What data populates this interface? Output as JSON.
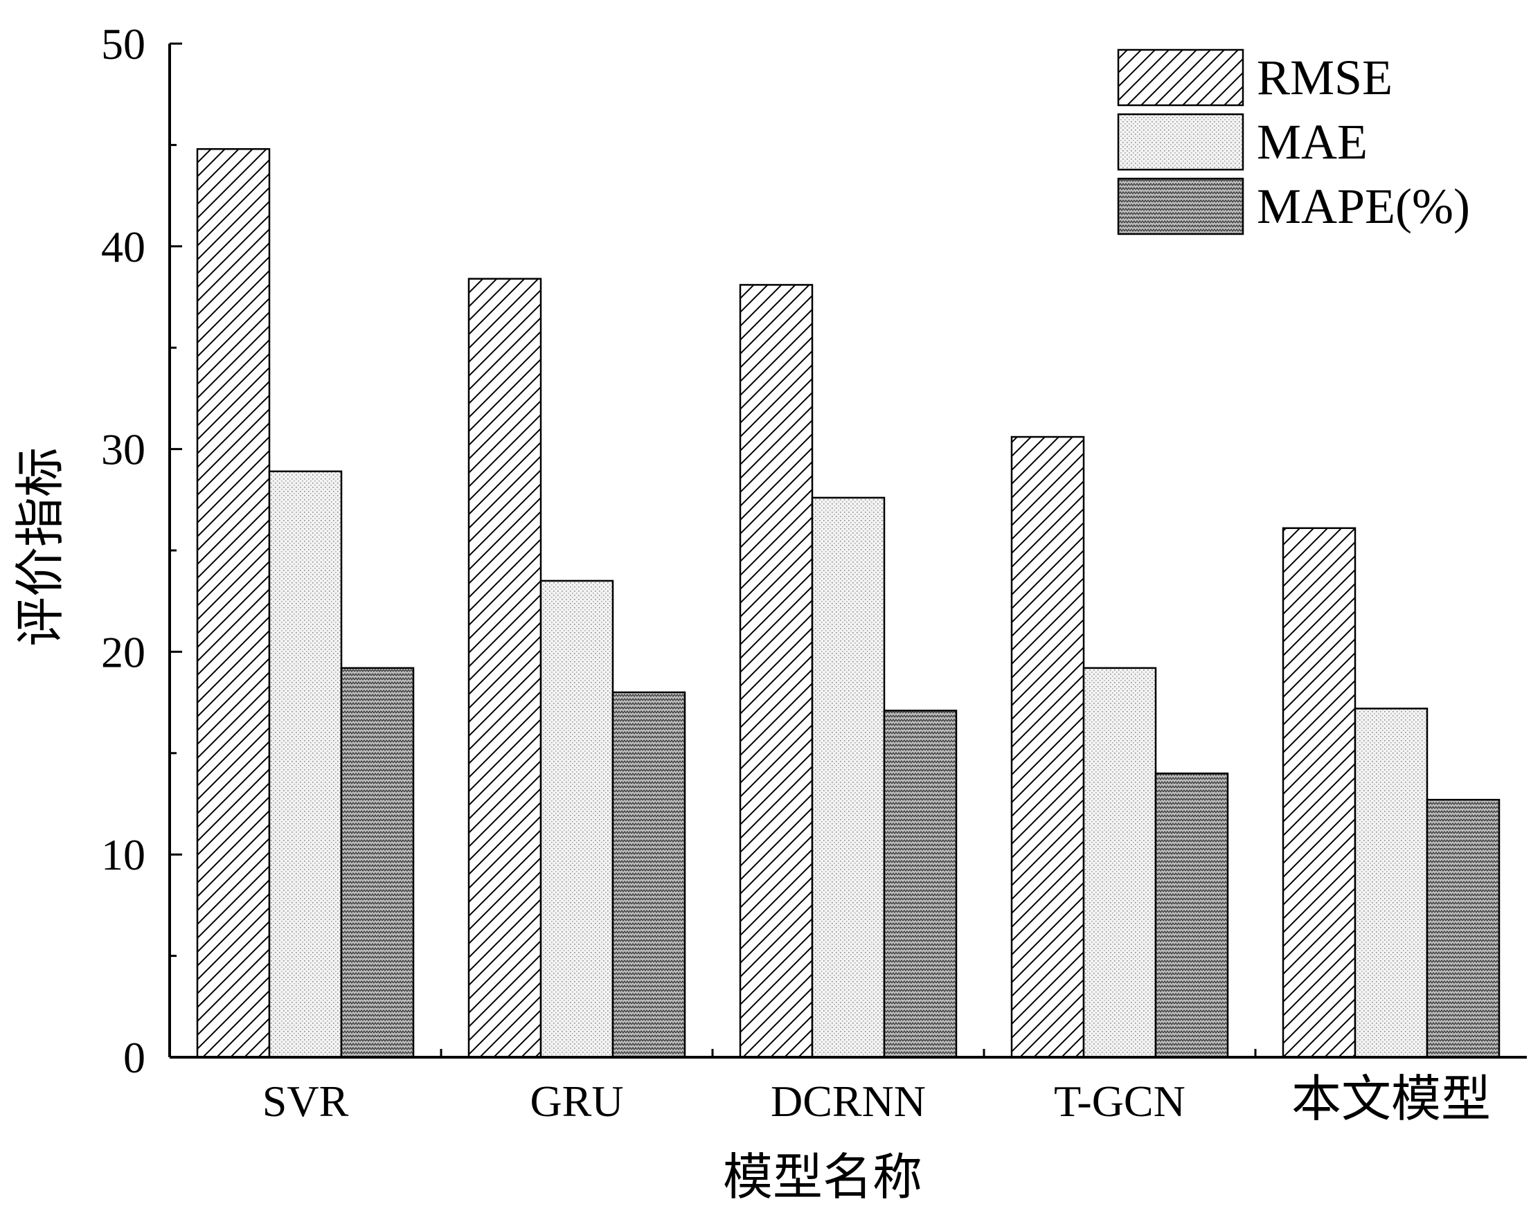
{
  "chart_data": {
    "type": "bar",
    "xlabel": "模型名称",
    "ylabel": "评价指标",
    "categories": [
      "SVR",
      "GRU",
      "DCRNN",
      "T-GCN",
      "本文模型"
    ],
    "series": [
      {
        "name": "RMSE",
        "values": [
          44.8,
          38.4,
          38.1,
          30.6,
          26.1
        ],
        "pattern": "diagonal-hatch"
      },
      {
        "name": "MAE",
        "values": [
          28.9,
          23.5,
          27.6,
          19.2,
          17.2
        ],
        "pattern": "fine-dots"
      },
      {
        "name": "MAPE(%)",
        "values": [
          19.2,
          18.0,
          17.1,
          14.0,
          12.7
        ],
        "pattern": "dense-zigzag"
      }
    ],
    "ylim": [
      0,
      50
    ],
    "yticks": [
      0,
      10,
      20,
      30,
      40,
      50
    ],
    "grid": false,
    "legend": "top-right",
    "colors": {
      "axis": "#000000",
      "bar_stroke": "#000000"
    }
  }
}
